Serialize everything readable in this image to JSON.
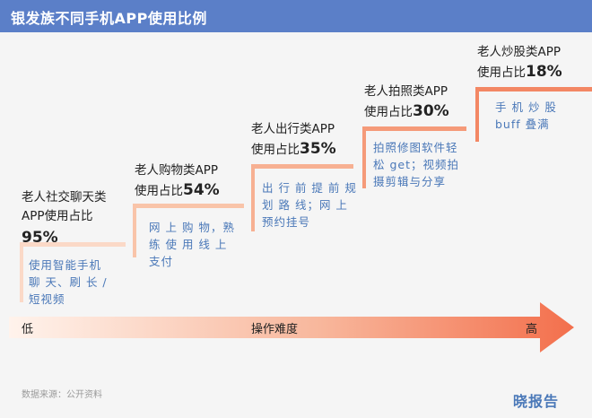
{
  "header": {
    "title": "银发族不同手机APP使用比例"
  },
  "chart_data": {
    "type": "table",
    "title": "银发族不同手机APP使用比例",
    "categories": [
      "老人社交聊天类APP",
      "老人购物类APP",
      "老人出行类APP",
      "老人拍照类APP",
      "老人炒股类APP"
    ],
    "values": [
      95,
      54,
      35,
      30,
      18
    ],
    "unit": "%",
    "steps": [
      {
        "title_line1": "老人社交聊天类",
        "title_line2": "APP使用占比",
        "prefix": "",
        "percent": "95%",
        "desc": [
          "使用智能手机",
          "聊 天、刷 长 /",
          "短视频"
        ]
      },
      {
        "title_line1": "老人购物类APP",
        "prefix": "使用占比",
        "percent": "54%",
        "desc": [
          "网 上 购 物，熟",
          "练 使 用 线 上",
          "支付"
        ]
      },
      {
        "title_line1": "老人出行类APP",
        "prefix": "使用占比",
        "percent": "35%",
        "desc": [
          "出 行 前 提 前 规",
          "划 路 线；网 上",
          "预约挂号"
        ]
      },
      {
        "title_line1": "老人拍照类APP",
        "prefix": "使用占比",
        "percent": "30%",
        "desc": [
          "拍照修图软件轻",
          "松 get；视频拍",
          "摄剪辑与分享"
        ]
      },
      {
        "title_line1": "老人炒股类APP",
        "prefix": "使用占比",
        "percent": "18%",
        "desc": [
          "手 机 炒 股",
          "buff 叠满"
        ]
      }
    ],
    "axis": {
      "low": "低",
      "middle": "操作难度",
      "high": "高"
    }
  },
  "footer": {
    "source": "数据来源：公开资料",
    "logo": "晓报告"
  },
  "colors": {
    "header": "#5b7fc8",
    "step_line": "#f4a582",
    "desc_text": "#4a78b8",
    "arrow_start": "#fde8de",
    "arrow_end": "#f36f4c"
  }
}
